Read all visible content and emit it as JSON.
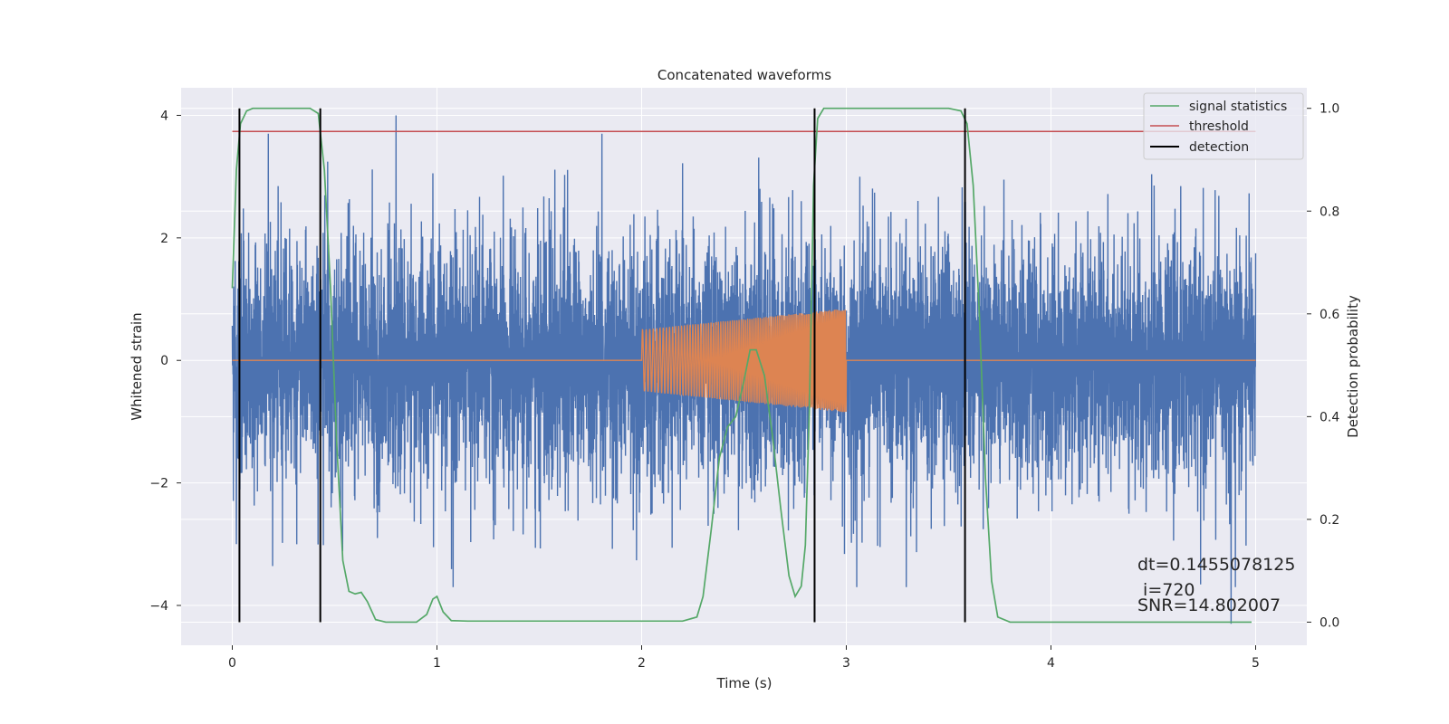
{
  "chart_data": {
    "type": "line",
    "title": "Concatenated waveforms",
    "xlabel": "Time (s)",
    "ylabel": "Whitened strain",
    "y2label": "Detection probability",
    "xlim": [
      -0.25,
      5.25
    ],
    "ylim": [
      -4.65,
      4.45
    ],
    "y2lim": [
      -0.045,
      1.04
    ],
    "x_ticks": [
      0,
      1,
      2,
      3,
      4,
      5
    ],
    "y_ticks": [
      -4,
      -2,
      0,
      2,
      4
    ],
    "y_tick_labels": [
      "−4",
      "−2",
      "0",
      "2",
      "4"
    ],
    "y2_ticks": [
      0.0,
      0.2,
      0.4,
      0.6,
      0.8,
      1.0
    ],
    "y2_tick_labels": [
      "0.0",
      "0.2",
      "0.4",
      "0.6",
      "0.8",
      "1.0"
    ],
    "grid": true,
    "legend": {
      "placement": "top-right",
      "entries": [
        {
          "label": "signal statistics",
          "color": "#55a868"
        },
        {
          "label": "threshold",
          "color": "#c44e52"
        },
        {
          "label": "detection",
          "color": "#000000"
        }
      ]
    },
    "series": [
      {
        "kind": "noise",
        "color": "#4c72b0",
        "x_range": [
          0,
          5
        ],
        "typical_amplitude": 1.5,
        "spikes": [
          [
            0.8,
            4.0
          ],
          [
            4.88,
            -4.3
          ],
          [
            0.02,
            -3.0
          ],
          [
            2.78,
            2.6
          ]
        ]
      },
      {
        "kind": "chirp",
        "color": "#dd8452",
        "flat_value": 0,
        "chirp_x": [
          2.0,
          3.0
        ],
        "amplitude_start": 0.5,
        "amplitude_end": 0.85
      },
      {
        "name": "signal statistics",
        "axis": "right",
        "color": "#55a868",
        "points": [
          [
            0.0,
            0.65
          ],
          [
            0.02,
            0.88
          ],
          [
            0.04,
            0.97
          ],
          [
            0.07,
            0.995
          ],
          [
            0.1,
            1.0
          ],
          [
            0.38,
            1.0
          ],
          [
            0.42,
            0.99
          ],
          [
            0.45,
            0.88
          ],
          [
            0.48,
            0.65
          ],
          [
            0.51,
            0.35
          ],
          [
            0.54,
            0.12
          ],
          [
            0.57,
            0.06
          ],
          [
            0.6,
            0.055
          ],
          [
            0.63,
            0.058
          ],
          [
            0.66,
            0.04
          ],
          [
            0.7,
            0.005
          ],
          [
            0.75,
            0.0
          ],
          [
            0.9,
            0.0
          ],
          [
            0.95,
            0.015
          ],
          [
            0.98,
            0.045
          ],
          [
            1.0,
            0.05
          ],
          [
            1.03,
            0.02
          ],
          [
            1.07,
            0.003
          ],
          [
            1.15,
            0.002
          ],
          [
            2.2,
            0.002
          ],
          [
            2.27,
            0.01
          ],
          [
            2.3,
            0.05
          ],
          [
            2.34,
            0.18
          ],
          [
            2.38,
            0.32
          ],
          [
            2.42,
            0.38
          ],
          [
            2.46,
            0.4
          ],
          [
            2.5,
            0.47
          ],
          [
            2.53,
            0.53
          ],
          [
            2.56,
            0.53
          ],
          [
            2.6,
            0.48
          ],
          [
            2.64,
            0.36
          ],
          [
            2.68,
            0.22
          ],
          [
            2.72,
            0.09
          ],
          [
            2.75,
            0.05
          ],
          [
            2.78,
            0.07
          ],
          [
            2.8,
            0.15
          ],
          [
            2.82,
            0.42
          ],
          [
            2.84,
            0.85
          ],
          [
            2.86,
            0.98
          ],
          [
            2.89,
            1.0
          ],
          [
            3.5,
            1.0
          ],
          [
            3.56,
            0.995
          ],
          [
            3.59,
            0.97
          ],
          [
            3.62,
            0.85
          ],
          [
            3.65,
            0.6
          ],
          [
            3.68,
            0.28
          ],
          [
            3.71,
            0.08
          ],
          [
            3.74,
            0.01
          ],
          [
            3.8,
            0.0
          ],
          [
            4.98,
            0.0
          ]
        ]
      },
      {
        "name": "threshold",
        "axis": "right",
        "color": "#c44e52",
        "x": [
          0,
          5
        ],
        "value": 0.955
      },
      {
        "name": "detection",
        "axis": "right",
        "color": "#000000",
        "vlines": [
          0.035,
          0.43,
          2.845,
          3.58
        ],
        "range": [
          0.0,
          1.0
        ]
      }
    ],
    "annotations": [
      {
        "text": "dt=0.1455078125",
        "line": 1
      },
      {
        "text": " i=720",
        "line": 2
      },
      {
        "text": "SNR=14.802007",
        "line": 3
      }
    ]
  },
  "colors": {
    "plot_background": "#eaeaf2",
    "grid": "#ffffff"
  }
}
